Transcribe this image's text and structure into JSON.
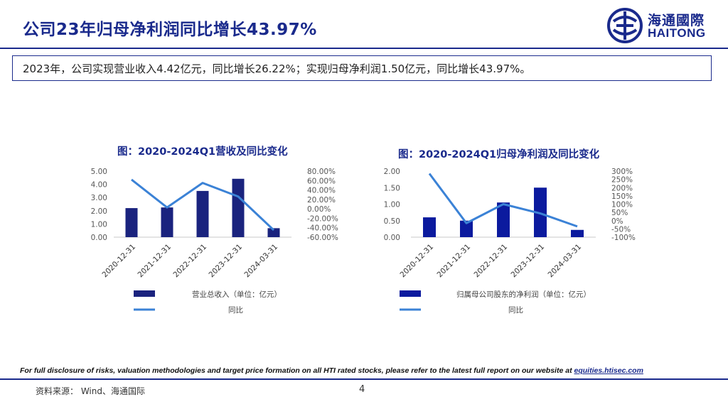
{
  "page": {
    "title": "公司23年归母净利润同比增长43.97%",
    "summary": "2023年，公司实现营业收入4.42亿元，同比增长26.22%；实现归母净利润1.50亿元，同比增长43.97%。",
    "logo_cn": "海通國際",
    "logo_en": "HAITONG",
    "disclaimer_text": "For full disclosure of risks, valuation methodologies and target price formation on all HTI rated stocks, please refer to the latest full report on our website at ",
    "disclaimer_link": "equities.htisec.com",
    "source": "资料来源：  Wind、海通国际",
    "page_number": "4"
  },
  "colors": {
    "brand": "#1a2a8c",
    "bar": "#1a237e",
    "bar2": "#0b1a9e",
    "line": "#3b82d6"
  },
  "chart_data": [
    {
      "type": "bar",
      "title": "图：2020-2024Q1营收及同比变化",
      "categories": [
        "2020-12-31",
        "2021-12-31",
        "2022-12-31",
        "2023-12-31",
        "2024-03-31"
      ],
      "series": [
        {
          "name": "营业总收入（单位：亿元）",
          "type": "bar",
          "axis": "left",
          "values": [
            2.2,
            2.25,
            3.5,
            4.42,
            0.68
          ]
        },
        {
          "name": "同比",
          "type": "line",
          "axis": "right",
          "values": [
            62,
            3,
            55,
            26.22,
            -45
          ]
        }
      ],
      "left_axis": {
        "min": 0,
        "max": 5,
        "ticks": [
          0,
          1,
          2,
          3,
          4,
          5
        ],
        "labels": [
          "0.00",
          "1.00",
          "2.00",
          "3.00",
          "4.00",
          "5.00"
        ]
      },
      "right_axis": {
        "min": -60,
        "max": 80,
        "ticks": [
          -60,
          -40,
          -20,
          0,
          20,
          40,
          60,
          80
        ],
        "labels": [
          "-60.00%",
          "-40.00%",
          "-20.00%",
          "0.00%",
          "20.00%",
          "40.00%",
          "60.00%",
          "80.00%"
        ]
      },
      "legend": [
        "营业总收入（单位：亿元）",
        "同比"
      ]
    },
    {
      "type": "bar",
      "title": "图：2020-2024Q1归母净利润及同比变化",
      "categories": [
        "2020-12-31",
        "2021-12-31",
        "2022-12-31",
        "2023-12-31",
        "2024-03-31"
      ],
      "series": [
        {
          "name": "归属母公司股东的净利润（单位：亿元）",
          "type": "bar",
          "axis": "left",
          "values": [
            0.6,
            0.5,
            1.05,
            1.5,
            0.22
          ]
        },
        {
          "name": "同比",
          "type": "line",
          "axis": "right",
          "values": [
            285,
            -15,
            100,
            43.97,
            -35
          ]
        }
      ],
      "left_axis": {
        "min": 0,
        "max": 2,
        "ticks": [
          0,
          0.5,
          1,
          1.5,
          2
        ],
        "labels": [
          "0.00",
          "0.50",
          "1.00",
          "1.50",
          "2.00"
        ]
      },
      "right_axis": {
        "min": -100,
        "max": 300,
        "ticks": [
          -100,
          -50,
          0,
          50,
          100,
          150,
          200,
          250,
          300
        ],
        "labels": [
          "-100%",
          "-50%",
          "0%",
          "50%",
          "100%",
          "150%",
          "200%",
          "250%",
          "300%"
        ]
      },
      "legend": [
        "归属母公司股东的净利润（单位：亿元）",
        "同比"
      ]
    }
  ]
}
